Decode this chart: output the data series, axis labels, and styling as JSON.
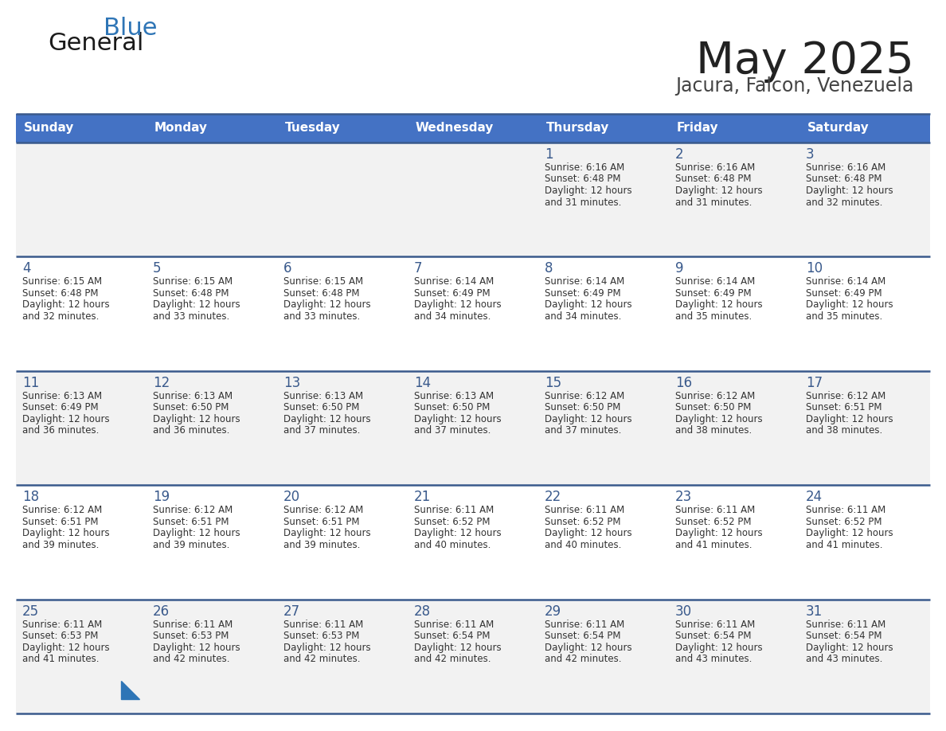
{
  "title": "May 2025",
  "subtitle": "Jacura, Falcon, Venezuela",
  "days_of_week": [
    "Sunday",
    "Monday",
    "Tuesday",
    "Wednesday",
    "Thursday",
    "Friday",
    "Saturday"
  ],
  "header_bg": "#4472C4",
  "header_text": "#FFFFFF",
  "row_bg_odd": "#F2F2F2",
  "row_bg_even": "#FFFFFF",
  "cell_border_color": "#3A5A8C",
  "day_number_color": "#3A5A8C",
  "text_color": "#333333",
  "title_color": "#222222",
  "subtitle_color": "#444444",
  "logo_general_color": "#1a1a1a",
  "logo_blue_color": "#2E75B6",
  "weeks": [
    [
      {
        "day": null,
        "sunrise": null,
        "sunset": null,
        "daylight": null
      },
      {
        "day": null,
        "sunrise": null,
        "sunset": null,
        "daylight": null
      },
      {
        "day": null,
        "sunrise": null,
        "sunset": null,
        "daylight": null
      },
      {
        "day": null,
        "sunrise": null,
        "sunset": null,
        "daylight": null
      },
      {
        "day": 1,
        "sunrise": "6:16 AM",
        "sunset": "6:48 PM",
        "daylight": "12 hours and 31 minutes."
      },
      {
        "day": 2,
        "sunrise": "6:16 AM",
        "sunset": "6:48 PM",
        "daylight": "12 hours and 31 minutes."
      },
      {
        "day": 3,
        "sunrise": "6:16 AM",
        "sunset": "6:48 PM",
        "daylight": "12 hours and 32 minutes."
      }
    ],
    [
      {
        "day": 4,
        "sunrise": "6:15 AM",
        "sunset": "6:48 PM",
        "daylight": "12 hours and 32 minutes."
      },
      {
        "day": 5,
        "sunrise": "6:15 AM",
        "sunset": "6:48 PM",
        "daylight": "12 hours and 33 minutes."
      },
      {
        "day": 6,
        "sunrise": "6:15 AM",
        "sunset": "6:48 PM",
        "daylight": "12 hours and 33 minutes."
      },
      {
        "day": 7,
        "sunrise": "6:14 AM",
        "sunset": "6:49 PM",
        "daylight": "12 hours and 34 minutes."
      },
      {
        "day": 8,
        "sunrise": "6:14 AM",
        "sunset": "6:49 PM",
        "daylight": "12 hours and 34 minutes."
      },
      {
        "day": 9,
        "sunrise": "6:14 AM",
        "sunset": "6:49 PM",
        "daylight": "12 hours and 35 minutes."
      },
      {
        "day": 10,
        "sunrise": "6:14 AM",
        "sunset": "6:49 PM",
        "daylight": "12 hours and 35 minutes."
      }
    ],
    [
      {
        "day": 11,
        "sunrise": "6:13 AM",
        "sunset": "6:49 PM",
        "daylight": "12 hours and 36 minutes."
      },
      {
        "day": 12,
        "sunrise": "6:13 AM",
        "sunset": "6:50 PM",
        "daylight": "12 hours and 36 minutes."
      },
      {
        "day": 13,
        "sunrise": "6:13 AM",
        "sunset": "6:50 PM",
        "daylight": "12 hours and 37 minutes."
      },
      {
        "day": 14,
        "sunrise": "6:13 AM",
        "sunset": "6:50 PM",
        "daylight": "12 hours and 37 minutes."
      },
      {
        "day": 15,
        "sunrise": "6:12 AM",
        "sunset": "6:50 PM",
        "daylight": "12 hours and 37 minutes."
      },
      {
        "day": 16,
        "sunrise": "6:12 AM",
        "sunset": "6:50 PM",
        "daylight": "12 hours and 38 minutes."
      },
      {
        "day": 17,
        "sunrise": "6:12 AM",
        "sunset": "6:51 PM",
        "daylight": "12 hours and 38 minutes."
      }
    ],
    [
      {
        "day": 18,
        "sunrise": "6:12 AM",
        "sunset": "6:51 PM",
        "daylight": "12 hours and 39 minutes."
      },
      {
        "day": 19,
        "sunrise": "6:12 AM",
        "sunset": "6:51 PM",
        "daylight": "12 hours and 39 minutes."
      },
      {
        "day": 20,
        "sunrise": "6:12 AM",
        "sunset": "6:51 PM",
        "daylight": "12 hours and 39 minutes."
      },
      {
        "day": 21,
        "sunrise": "6:11 AM",
        "sunset": "6:52 PM",
        "daylight": "12 hours and 40 minutes."
      },
      {
        "day": 22,
        "sunrise": "6:11 AM",
        "sunset": "6:52 PM",
        "daylight": "12 hours and 40 minutes."
      },
      {
        "day": 23,
        "sunrise": "6:11 AM",
        "sunset": "6:52 PM",
        "daylight": "12 hours and 41 minutes."
      },
      {
        "day": 24,
        "sunrise": "6:11 AM",
        "sunset": "6:52 PM",
        "daylight": "12 hours and 41 minutes."
      }
    ],
    [
      {
        "day": 25,
        "sunrise": "6:11 AM",
        "sunset": "6:53 PM",
        "daylight": "12 hours and 41 minutes."
      },
      {
        "day": 26,
        "sunrise": "6:11 AM",
        "sunset": "6:53 PM",
        "daylight": "12 hours and 42 minutes."
      },
      {
        "day": 27,
        "sunrise": "6:11 AM",
        "sunset": "6:53 PM",
        "daylight": "12 hours and 42 minutes."
      },
      {
        "day": 28,
        "sunrise": "6:11 AM",
        "sunset": "6:54 PM",
        "daylight": "12 hours and 42 minutes."
      },
      {
        "day": 29,
        "sunrise": "6:11 AM",
        "sunset": "6:54 PM",
        "daylight": "12 hours and 42 minutes."
      },
      {
        "day": 30,
        "sunrise": "6:11 AM",
        "sunset": "6:54 PM",
        "daylight": "12 hours and 43 minutes."
      },
      {
        "day": 31,
        "sunrise": "6:11 AM",
        "sunset": "6:54 PM",
        "daylight": "12 hours and 43 minutes."
      }
    ]
  ]
}
